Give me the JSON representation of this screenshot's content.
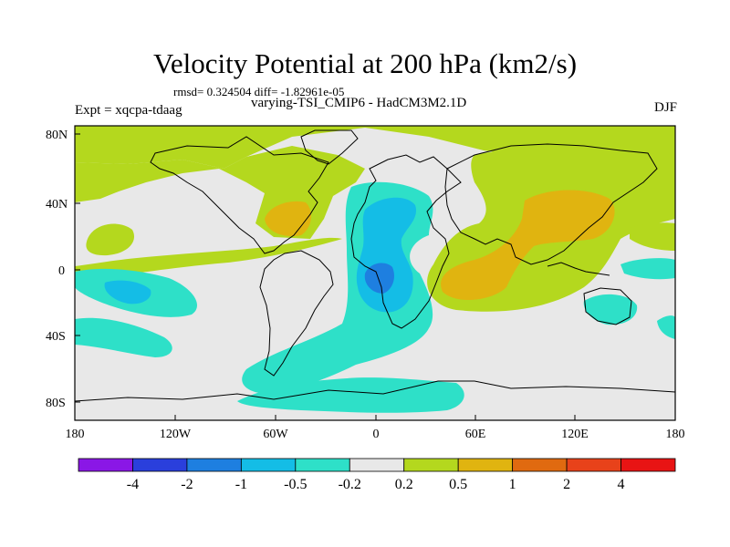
{
  "title": "Velocity Potential at 200 hPa (km2/s)",
  "stats": "rmsd= 0.324504 diff= -1.82961e-05",
  "subtitle": "varying-TSI_CMIP6 - HadCM3M2.1D",
  "expt_label": "Expt = xqcpa-tdaag",
  "season": "DJF",
  "lat_ticks": [
    "80N",
    "40N",
    "0",
    "40S",
    "80S"
  ],
  "lon_ticks": [
    "180",
    "120W",
    "60W",
    "0",
    "60E",
    "120E",
    "180"
  ],
  "colorbar": {
    "labels": [
      "-4",
      "-2",
      "-1",
      "-0.5",
      "-0.2",
      "0.2",
      "0.5",
      "1",
      "2",
      "4"
    ],
    "colors": [
      "#8a17e6",
      "#2a3fdc",
      "#1e7fe0",
      "#14bde6",
      "#2ee0c8",
      "#e8e8e8",
      "#b4d81e",
      "#e0b410",
      "#e06a10",
      "#e8421a",
      "#e81414"
    ]
  },
  "colors": {
    "neutral": "#e8e8e8",
    "pos_02": "#b4d81e",
    "pos_05": "#e0b410",
    "neg_02": "#2ee0c8",
    "neg_05": "#14bde6",
    "neg_1": "#1e7fe0"
  }
}
